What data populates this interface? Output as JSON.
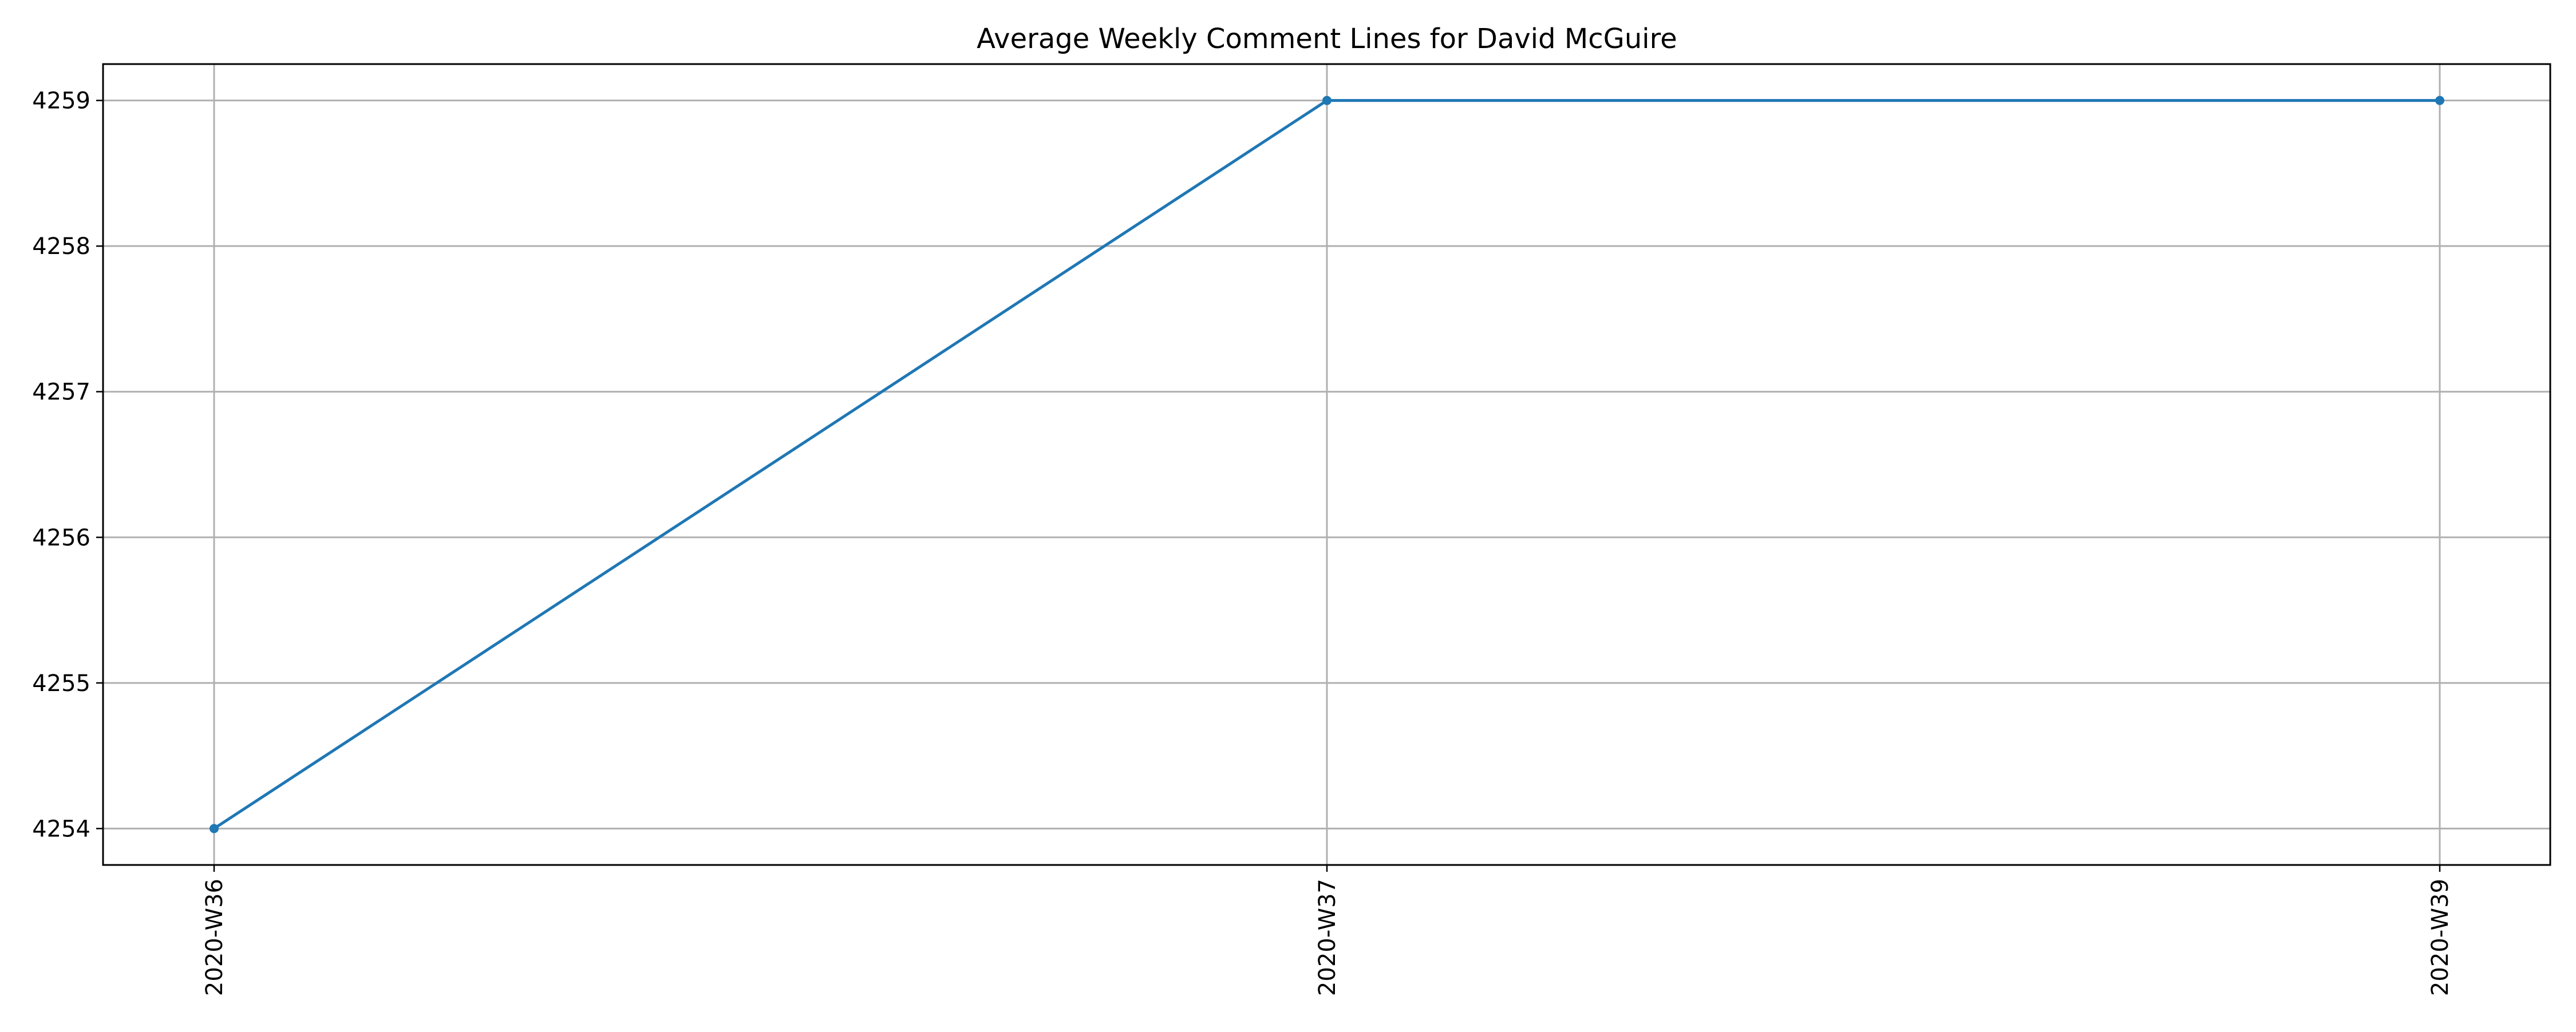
{
  "chart_data": {
    "type": "line",
    "title": "Average Weekly Comment Lines for David McGuire",
    "xlabel": "",
    "ylabel": "",
    "categories": [
      "2020-W36",
      "2020-W37",
      "2020-W39"
    ],
    "series": [
      {
        "values": [
          4254,
          4259,
          4259
        ],
        "color": "#1f77b4",
        "marker": "circle"
      }
    ],
    "yticks": [
      4254,
      4255,
      4256,
      4257,
      4258,
      4259
    ],
    "ylim": [
      4253.75,
      4259.25
    ],
    "x_tick_rotation": "vertical",
    "grid": true,
    "legend": false
  }
}
